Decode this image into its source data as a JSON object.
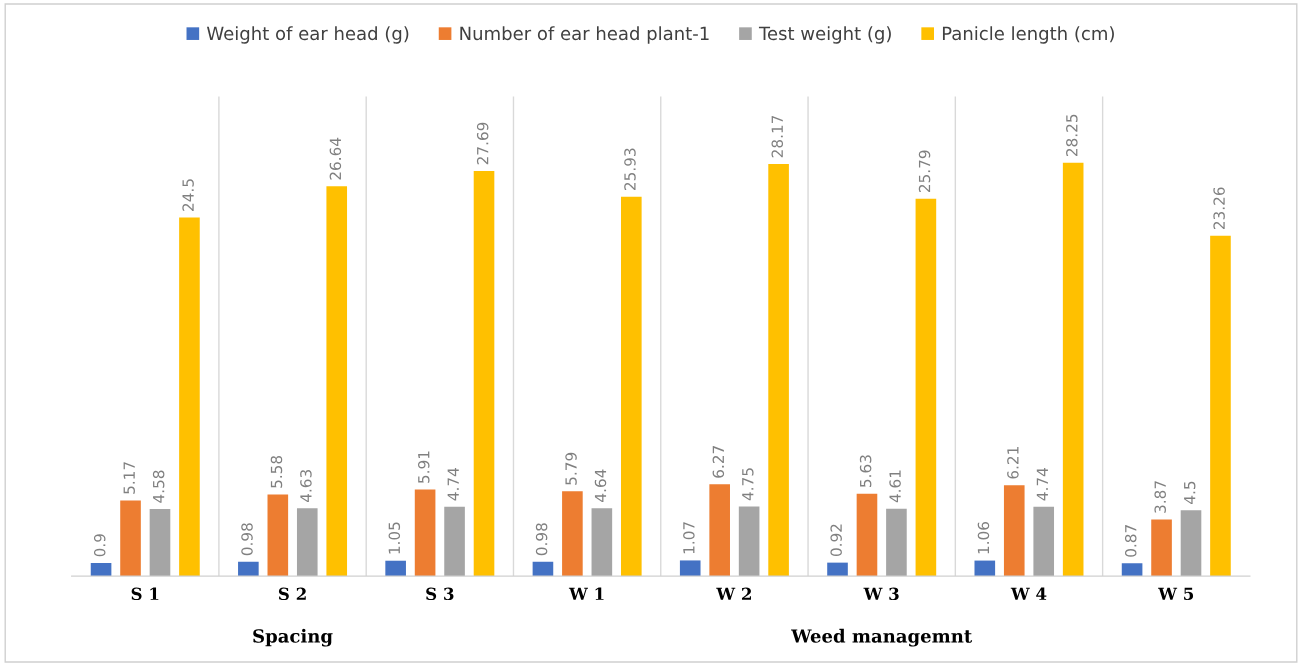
{
  "chart_data": {
    "type": "bar",
    "categories": [
      "S 1",
      "S 2",
      "S 3",
      "W 1",
      "W 2",
      "W 3",
      "W 4",
      "W 5"
    ],
    "series": [
      {
        "name": "Weight of ear head (g)",
        "color": "#4472c4",
        "values": [
          0.9,
          0.98,
          1.05,
          0.98,
          1.07,
          0.92,
          1.06,
          0.87
        ]
      },
      {
        "name": "Number of ear head plant-1",
        "color": "#ed7d31",
        "values": [
          5.17,
          5.58,
          5.91,
          5.79,
          6.27,
          5.63,
          6.21,
          3.87
        ]
      },
      {
        "name": "Test weight (g)",
        "color": "#a5a5a5",
        "values": [
          4.58,
          4.63,
          4.74,
          4.64,
          4.75,
          4.61,
          4.74,
          4.5
        ]
      },
      {
        "name": "Panicle length (cm)",
        "color": "#ffc000",
        "values": [
          24.5,
          26.64,
          27.69,
          25.93,
          28.17,
          25.79,
          28.25,
          23.26
        ]
      }
    ],
    "data_labels": true,
    "annotations": [
      "Spacing",
      "Weed managemnt"
    ],
    "grid": "x",
    "legend": "top",
    "tick_labels": "x"
  }
}
